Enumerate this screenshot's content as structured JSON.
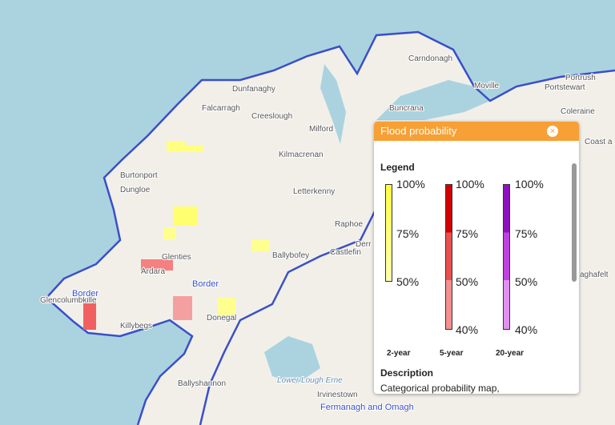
{
  "map": {
    "labels": [
      "Carndonagh",
      "Moville",
      "Portstewart",
      "Portrush",
      "Coleraine",
      "Coast a",
      "Dunfanaghy",
      "Falcarragh",
      "Creeslough",
      "Milford",
      "Buncrana",
      "Kilmacrenan",
      "Letterkenny",
      "Burtonport",
      "Dungloe",
      "Raphoe",
      "Castlefin",
      "Ballybofey",
      "Glenties",
      "Ardara",
      "Glencolumbkille",
      "Killybegs",
      "Donegal",
      "Ballyshannon",
      "Irvinestown",
      "Lower Lough Erne",
      "Derr",
      "aghafelt"
    ],
    "regions": [
      "Border",
      "Border",
      "Fermanagh and Omagh"
    ]
  },
  "popup": {
    "title": "Flood probability",
    "close": "×",
    "legend": {
      "heading": "Legend",
      "columns": [
        {
          "name": "2-year",
          "labels": [
            "100%",
            "75%",
            "50%"
          ]
        },
        {
          "name": "5-year",
          "labels": [
            "100%",
            "75%",
            "50%",
            "40%"
          ]
        },
        {
          "name": "20-year",
          "labels": [
            "100%",
            "75%",
            "50%",
            "40%"
          ]
        }
      ]
    },
    "description": {
      "heading": "Description",
      "text": "Categorical probability map,"
    }
  }
}
